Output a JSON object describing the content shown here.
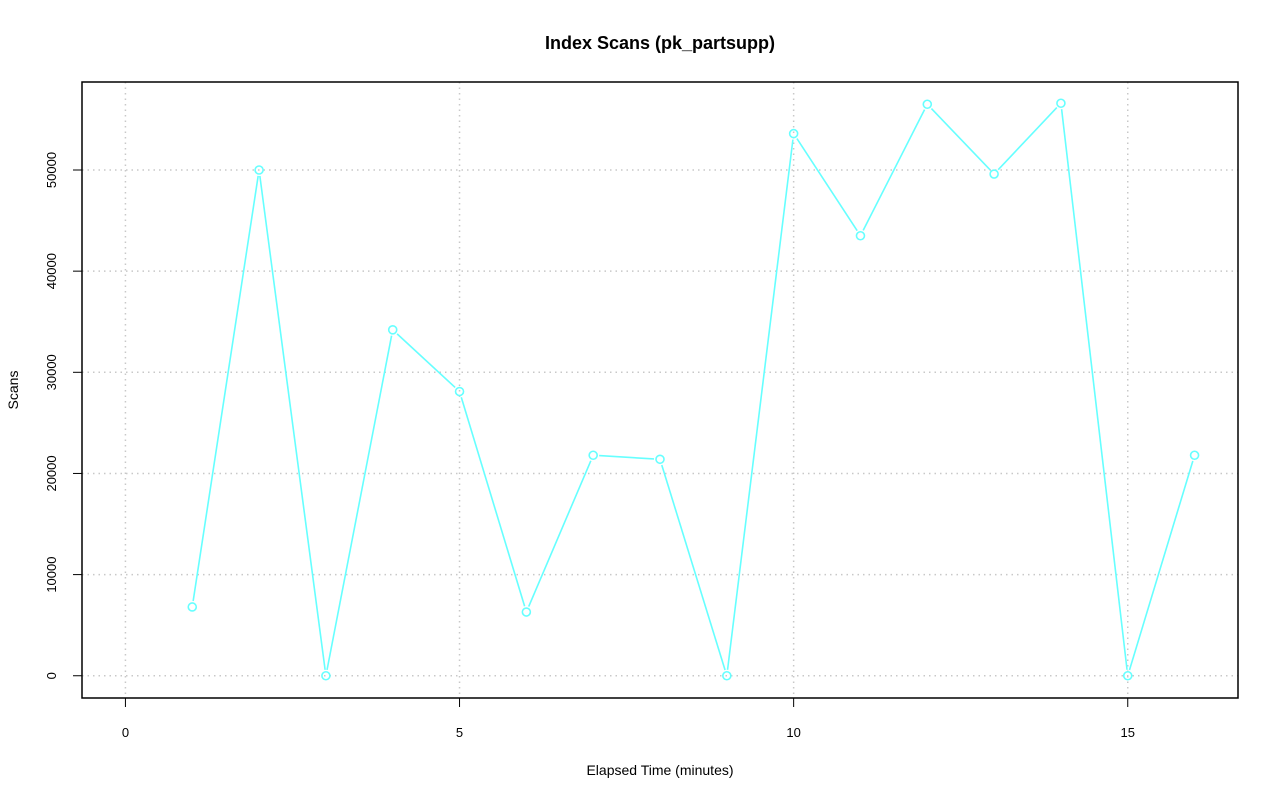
{
  "chart_data": {
    "type": "line",
    "title": "Index Scans (pk_partsupp)",
    "xlabel": "Elapsed Time (minutes)",
    "ylabel": "Scans",
    "xlim": [
      -0.65,
      16.65
    ],
    "ylim": [
      -2200,
      58700
    ],
    "x_ticks": [
      0,
      5,
      10,
      15
    ],
    "y_ticks": [
      0,
      10000,
      20000,
      30000,
      40000,
      50000
    ],
    "grid": true,
    "series": [
      {
        "color": "#66ffff",
        "x": [
          1,
          2,
          3,
          4,
          5,
          6,
          7,
          8,
          9,
          10,
          11,
          12,
          13,
          14,
          15,
          16
        ],
        "y": [
          6800,
          50000,
          0,
          34200,
          28100,
          6300,
          21800,
          21400,
          0,
          53600,
          43500,
          56500,
          49600,
          56600,
          0,
          21800
        ]
      }
    ]
  }
}
